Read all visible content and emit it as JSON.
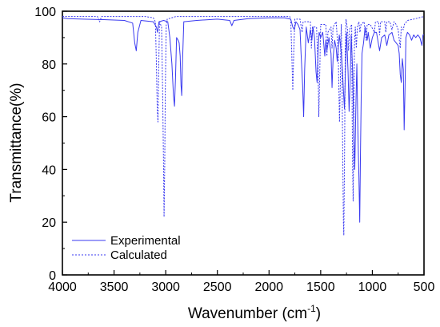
{
  "chart_data": {
    "type": "line",
    "title": "",
    "xlabel": "Wavenumber (cm",
    "xlabel_sup": "-1",
    "xlabel_close": ")",
    "ylabel": "Transmittance(%)",
    "xlim": [
      4000,
      500
    ],
    "ylim": [
      0,
      100
    ],
    "x_ticks": [
      "4000",
      "3500",
      "3000",
      "2500",
      "2000",
      "1500",
      "1000",
      "500"
    ],
    "y_ticks": [
      "0",
      "20",
      "40",
      "60",
      "80",
      "100"
    ],
    "grid": false,
    "legend_position": "bottom-left",
    "series": [
      {
        "name": "Experimental",
        "color": "#3a3af0",
        "style": "solid",
        "baseline": 97.5,
        "points": [
          [
            4000,
            97.5
          ],
          [
            3950,
            97.2
          ],
          [
            3800,
            97.0
          ],
          [
            3600,
            96.8
          ],
          [
            3400,
            96.5
          ],
          [
            3320,
            95.5
          ],
          [
            3300,
            88
          ],
          [
            3285,
            85
          ],
          [
            3270,
            92
          ],
          [
            3240,
            96.5
          ],
          [
            3120,
            96.0
          ],
          [
            3090,
            94
          ],
          [
            3080,
            92
          ],
          [
            3065,
            96
          ],
          [
            3020,
            96.5
          ],
          [
            2980,
            96
          ],
          [
            2960,
            90
          ],
          [
            2940,
            80
          ],
          [
            2925,
            68
          ],
          [
            2915,
            64
          ],
          [
            2905,
            75
          ],
          [
            2895,
            90
          ],
          [
            2880,
            89
          ],
          [
            2870,
            88
          ],
          [
            2860,
            83
          ],
          [
            2852,
            72
          ],
          [
            2845,
            68
          ],
          [
            2838,
            80
          ],
          [
            2825,
            96
          ],
          [
            2700,
            96.5
          ],
          [
            2500,
            97
          ],
          [
            2380,
            96.5
          ],
          [
            2360,
            94.5
          ],
          [
            2340,
            96.5
          ],
          [
            2200,
            97.2
          ],
          [
            2000,
            97.5
          ],
          [
            1850,
            97.5
          ],
          [
            1790,
            97
          ],
          [
            1770,
            94
          ],
          [
            1755,
            93
          ],
          [
            1740,
            96
          ],
          [
            1720,
            95
          ],
          [
            1700,
            93
          ],
          [
            1690,
            84
          ],
          [
            1675,
            72
          ],
          [
            1665,
            60
          ],
          [
            1655,
            78
          ],
          [
            1640,
            94
          ],
          [
            1620,
            88
          ],
          [
            1600,
            93
          ],
          [
            1585,
            89
          ],
          [
            1575,
            94
          ],
          [
            1560,
            90
          ],
          [
            1545,
            77
          ],
          [
            1535,
            73
          ],
          [
            1525,
            85
          ],
          [
            1515,
            92
          ],
          [
            1500,
            90
          ],
          [
            1480,
            92
          ],
          [
            1460,
            83
          ],
          [
            1450,
            89
          ],
          [
            1440,
            85
          ],
          [
            1420,
            90
          ],
          [
            1400,
            84
          ],
          [
            1390,
            71
          ],
          [
            1380,
            82
          ],
          [
            1365,
            89
          ],
          [
            1350,
            86
          ],
          [
            1340,
            81
          ],
          [
            1330,
            86
          ],
          [
            1320,
            91
          ],
          [
            1300,
            84
          ],
          [
            1290,
            78
          ],
          [
            1280,
            70
          ],
          [
            1270,
            63
          ],
          [
            1260,
            78
          ],
          [
            1250,
            92
          ],
          [
            1235,
            77
          ],
          [
            1225,
            62
          ],
          [
            1215,
            73
          ],
          [
            1205,
            91
          ],
          [
            1190,
            77
          ],
          [
            1180,
            55
          ],
          [
            1170,
            40
          ],
          [
            1160,
            63
          ],
          [
            1150,
            80
          ],
          [
            1140,
            55
          ],
          [
            1130,
            37
          ],
          [
            1122,
            20
          ],
          [
            1115,
            46
          ],
          [
            1108,
            67
          ],
          [
            1100,
            84
          ],
          [
            1085,
            88
          ],
          [
            1070,
            94
          ],
          [
            1050,
            89
          ],
          [
            1040,
            92
          ],
          [
            1020,
            86
          ],
          [
            1000,
            90
          ],
          [
            980,
            92
          ],
          [
            960,
            92
          ],
          [
            930,
            85
          ],
          [
            910,
            90
          ],
          [
            880,
            91
          ],
          [
            860,
            87
          ],
          [
            840,
            91
          ],
          [
            810,
            92
          ],
          [
            790,
            89
          ],
          [
            770,
            88
          ],
          [
            750,
            87
          ],
          [
            740,
            84
          ],
          [
            730,
            76
          ],
          [
            720,
            73
          ],
          [
            710,
            82
          ],
          [
            700,
            78
          ],
          [
            692,
            55
          ],
          [
            685,
            68
          ],
          [
            675,
            90
          ],
          [
            660,
            92
          ],
          [
            640,
            91
          ],
          [
            620,
            89
          ],
          [
            600,
            91
          ],
          [
            580,
            90
          ],
          [
            560,
            91
          ],
          [
            540,
            90
          ],
          [
            520,
            87
          ],
          [
            510,
            91
          ],
          [
            500,
            91
          ]
        ]
      },
      {
        "name": "Calculated",
        "color": "#3a3af0",
        "style": "dashed",
        "baseline": 98,
        "points": [
          [
            4000,
            98
          ],
          [
            3800,
            98
          ],
          [
            3660,
            98
          ],
          [
            3640,
            96
          ],
          [
            3620,
            98
          ],
          [
            3500,
            98
          ],
          [
            3200,
            98
          ],
          [
            3120,
            97.5
          ],
          [
            3100,
            96
          ],
          [
            3090,
            80
          ],
          [
            3082,
            63
          ],
          [
            3075,
            58
          ],
          [
            3068,
            78
          ],
          [
            3060,
            96
          ],
          [
            3040,
            94
          ],
          [
            3030,
            70
          ],
          [
            3022,
            45
          ],
          [
            3016,
            22
          ],
          [
            3010,
            40
          ],
          [
            3004,
            70
          ],
          [
            2995,
            95
          ],
          [
            2985,
            97
          ],
          [
            2900,
            98
          ],
          [
            2700,
            98
          ],
          [
            2400,
            98
          ],
          [
            2000,
            98
          ],
          [
            1800,
            98
          ],
          [
            1790,
            97
          ],
          [
            1780,
            84
          ],
          [
            1770,
            70
          ],
          [
            1760,
            86
          ],
          [
            1750,
            97
          ],
          [
            1700,
            97
          ],
          [
            1680,
            92
          ],
          [
            1670,
            96
          ],
          [
            1600,
            96
          ],
          [
            1590,
            86
          ],
          [
            1580,
            94
          ],
          [
            1540,
            94
          ],
          [
            1525,
            78
          ],
          [
            1518,
            60
          ],
          [
            1510,
            75
          ],
          [
            1500,
            95
          ],
          [
            1450,
            95
          ],
          [
            1440,
            83
          ],
          [
            1430,
            92
          ],
          [
            1400,
            94
          ],
          [
            1390,
            86
          ],
          [
            1380,
            94
          ],
          [
            1350,
            96
          ],
          [
            1330,
            84
          ],
          [
            1318,
            58
          ],
          [
            1310,
            72
          ],
          [
            1305,
            90
          ],
          [
            1300,
            95
          ],
          [
            1295,
            80
          ],
          [
            1285,
            40
          ],
          [
            1280,
            20
          ],
          [
            1276,
            15
          ],
          [
            1270,
            40
          ],
          [
            1262,
            86
          ],
          [
            1255,
            97
          ],
          [
            1240,
            93
          ],
          [
            1230,
            85
          ],
          [
            1220,
            93
          ],
          [
            1200,
            95
          ],
          [
            1195,
            60
          ],
          [
            1190,
            38
          ],
          [
            1186,
            28
          ],
          [
            1180,
            50
          ],
          [
            1174,
            86
          ],
          [
            1165,
            94
          ],
          [
            1155,
            86
          ],
          [
            1145,
            94
          ],
          [
            1130,
            96
          ],
          [
            1120,
            92
          ],
          [
            1110,
            95
          ],
          [
            1080,
            96
          ],
          [
            1060,
            89
          ],
          [
            1050,
            95
          ],
          [
            1020,
            95
          ],
          [
            980,
            92
          ],
          [
            970,
            96
          ],
          [
            940,
            96
          ],
          [
            930,
            91
          ],
          [
            920,
            96
          ],
          [
            880,
            96
          ],
          [
            870,
            92
          ],
          [
            860,
            96
          ],
          [
            830,
            96
          ],
          [
            810,
            93
          ],
          [
            790,
            96
          ],
          [
            770,
            95
          ],
          [
            750,
            93
          ],
          [
            730,
            86
          ],
          [
            720,
            94
          ],
          [
            700,
            93
          ],
          [
            690,
            95
          ],
          [
            660,
            96.5
          ],
          [
            600,
            97
          ],
          [
            550,
            97.5
          ],
          [
            500,
            98
          ]
        ]
      }
    ]
  }
}
